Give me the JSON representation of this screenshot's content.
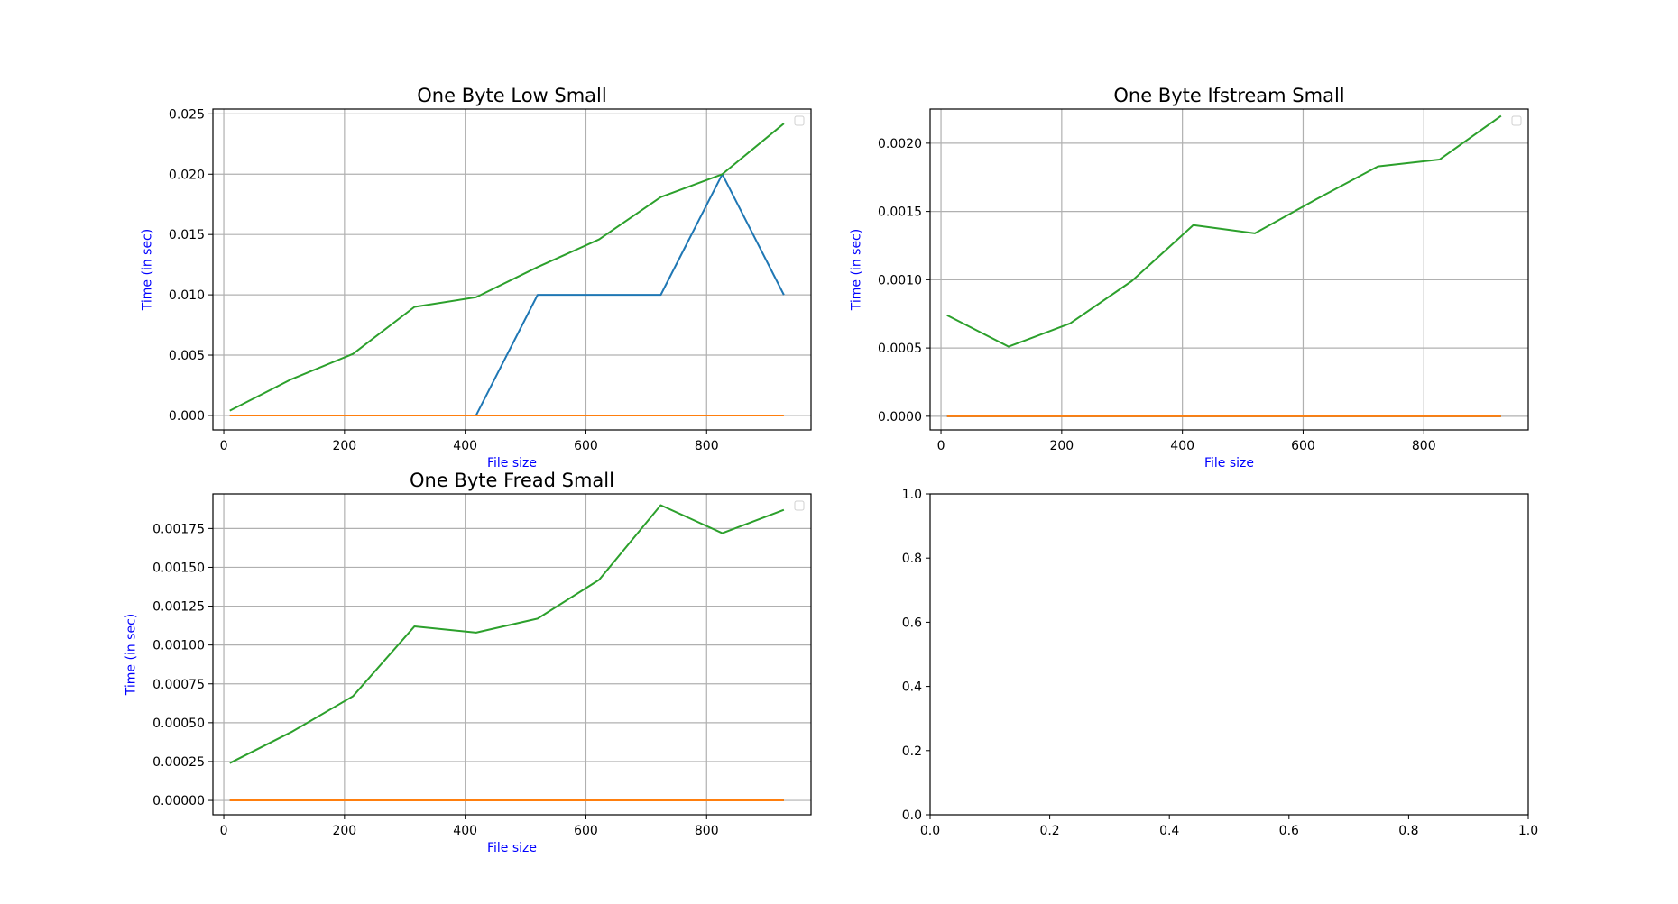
{
  "colors": {
    "series_blue": "#1f77b4",
    "series_orange": "#ff7f0e",
    "series_green": "#2ca02c",
    "axis_label": "#0000ff",
    "grid": "#b0b0b0"
  },
  "chart_data": [
    {
      "type": "line",
      "title": "One Byte Low Small",
      "xlabel": "File size",
      "ylabel": "Time (in sec)",
      "xlim": [
        -18,
        973
      ],
      "ylim": [
        -0.0012,
        0.0254
      ],
      "xticks": [
        0,
        200,
        400,
        600,
        800
      ],
      "xtick_labels": [
        "0",
        "200",
        "400",
        "600",
        "800"
      ],
      "yticks": [
        0,
        0.005,
        0.01,
        0.015,
        0.02,
        0.025
      ],
      "ytick_labels": [
        "0.000",
        "0.005",
        "0.010",
        "0.015",
        "0.020",
        "0.025"
      ],
      "grid": true,
      "legend": "upper right (empty)",
      "x": [
        10,
        112,
        214,
        316,
        418,
        520,
        622,
        724,
        826,
        928
      ],
      "series": [
        {
          "color": "#1f77b4",
          "values": [
            0,
            0,
            0,
            0,
            0,
            0.01,
            0.01,
            0.01,
            0.02,
            0.01
          ]
        },
        {
          "color": "#ff7f0e",
          "values": [
            0,
            0,
            0,
            0,
            0,
            0,
            0,
            0,
            0,
            0
          ]
        },
        {
          "color": "#2ca02c",
          "values": [
            0.0004,
            0.003,
            0.0051,
            0.009,
            0.0098,
            0.0123,
            0.0146,
            0.0181,
            0.02,
            0.0242
          ]
        }
      ]
    },
    {
      "type": "line",
      "title": "One Byte Ifstream Small",
      "xlabel": "File size",
      "ylabel": "Time (in sec)",
      "xlim": [
        -18,
        973
      ],
      "ylim": [
        -0.0001,
        0.00225
      ],
      "xticks": [
        0,
        200,
        400,
        600,
        800
      ],
      "xtick_labels": [
        "0",
        "200",
        "400",
        "600",
        "800"
      ],
      "yticks": [
        0,
        0.0005,
        0.001,
        0.0015,
        0.002
      ],
      "ytick_labels": [
        "0.0000",
        "0.0005",
        "0.0010",
        "0.0015",
        "0.0020"
      ],
      "grid": true,
      "legend": "upper right (empty)",
      "x": [
        10,
        112,
        214,
        316,
        418,
        520,
        622,
        724,
        826,
        928
      ],
      "series": [
        {
          "color": "#1f77b4",
          "values": [
            0,
            0,
            0,
            0,
            0,
            0,
            0,
            0,
            0,
            0
          ]
        },
        {
          "color": "#ff7f0e",
          "values": [
            0,
            0,
            0,
            0,
            0,
            0,
            0,
            0,
            0,
            0
          ]
        },
        {
          "color": "#2ca02c",
          "values": [
            0.00074,
            0.00051,
            0.00068,
            0.00099,
            0.0014,
            0.00134,
            0.00159,
            0.00183,
            0.00188,
            0.0022
          ]
        }
      ]
    },
    {
      "type": "line",
      "title": "One Byte Fread Small",
      "xlabel": "File size",
      "ylabel": "Time (in sec)",
      "xlim": [
        -18,
        973
      ],
      "ylim": [
        -9.25e-05,
        0.0019725
      ],
      "xticks": [
        0,
        200,
        400,
        600,
        800
      ],
      "xtick_labels": [
        "0",
        "200",
        "400",
        "600",
        "800"
      ],
      "yticks": [
        0,
        0.00025,
        0.0005,
        0.00075,
        0.001,
        0.00125,
        0.0015,
        0.00175
      ],
      "ytick_labels": [
        "0.00000",
        "0.00025",
        "0.00050",
        "0.00075",
        "0.00100",
        "0.00125",
        "0.00150",
        "0.00175"
      ],
      "grid": true,
      "legend": "upper right (empty)",
      "x": [
        10,
        112,
        214,
        316,
        418,
        520,
        622,
        724,
        826,
        928
      ],
      "series": [
        {
          "color": "#1f77b4",
          "values": [
            0,
            0,
            0,
            0,
            0,
            0,
            0,
            0,
            0,
            0
          ]
        },
        {
          "color": "#ff7f0e",
          "values": [
            0,
            0,
            0,
            0,
            0,
            0,
            0,
            0,
            0,
            0
          ]
        },
        {
          "color": "#2ca02c",
          "values": [
            0.00024,
            0.00044,
            0.00067,
            0.00112,
            0.00108,
            0.00117,
            0.00142,
            0.0019,
            0.00172,
            0.00187
          ]
        }
      ]
    },
    {
      "type": "line",
      "title": "",
      "xlabel": "",
      "ylabel": "",
      "xlim": [
        0,
        1
      ],
      "ylim": [
        0,
        1
      ],
      "xticks": [
        0,
        0.2,
        0.4,
        0.6,
        0.8,
        1.0
      ],
      "xtick_labels": [
        "0.0",
        "0.2",
        "0.4",
        "0.6",
        "0.8",
        "1.0"
      ],
      "yticks": [
        0,
        0.2,
        0.4,
        0.6,
        0.8,
        1.0
      ],
      "ytick_labels": [
        "0.0",
        "0.2",
        "0.4",
        "0.6",
        "0.8",
        "1.0"
      ],
      "grid": false,
      "legend": "none",
      "x": [],
      "series": []
    }
  ]
}
